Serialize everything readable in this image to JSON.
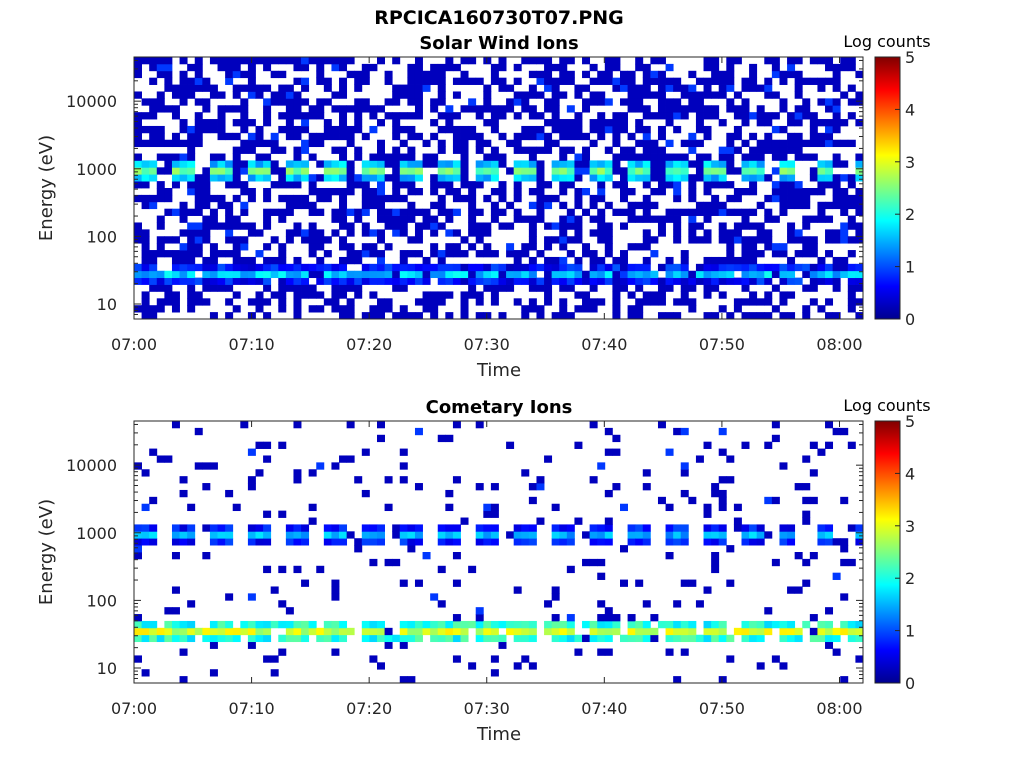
{
  "figure_title": "RPCICA160730T07.PNG",
  "chart_data": [
    {
      "type": "heatmap",
      "title": "Solar Wind Ions",
      "xlabel": "Time",
      "ylabel": "Energy (eV)",
      "x_ticks": [
        "07:00",
        "07:10",
        "07:20",
        "07:30",
        "07:40",
        "07:50",
        "08:00"
      ],
      "x_range": [
        "07:00",
        "08:02"
      ],
      "y_scale": "log",
      "y_ticks": [
        "10",
        "100",
        "1000",
        "10000"
      ],
      "y_range": [
        6,
        45000
      ],
      "colorbar": {
        "label": "Log counts",
        "colormap": "jet",
        "range": [
          0,
          5
        ],
        "ticks": [
          "0",
          "1",
          "2",
          "3",
          "4",
          "5"
        ]
      },
      "features": {
        "background_log_counts": 0.3,
        "background_fill_fraction": 0.55,
        "band_near_800eV_log_counts": 2.4,
        "band_near_25eV_log_counts": 1.6,
        "burst_period_minutes": 3.2
      }
    },
    {
      "type": "heatmap",
      "title": "Cometary Ions",
      "xlabel": "Time",
      "ylabel": "Energy (eV)",
      "x_ticks": [
        "07:00",
        "07:10",
        "07:20",
        "07:30",
        "07:40",
        "07:50",
        "08:00"
      ],
      "x_range": [
        "07:00",
        "08:02"
      ],
      "y_scale": "log",
      "y_ticks": [
        "10",
        "100",
        "1000",
        "10000"
      ],
      "y_range": [
        6,
        45000
      ],
      "colorbar": {
        "label": "Log counts",
        "colormap": "jet",
        "range": [
          0,
          5
        ],
        "ticks": [
          "0",
          "1",
          "2",
          "3",
          "4",
          "5"
        ]
      },
      "features": {
        "background_log_counts": 0.3,
        "background_fill_fraction": 0.08,
        "band_near_800eV_log_counts": 1.5,
        "band_near_28eV_log_counts": 2.9,
        "burst_period_minutes": 3.2
      }
    }
  ]
}
